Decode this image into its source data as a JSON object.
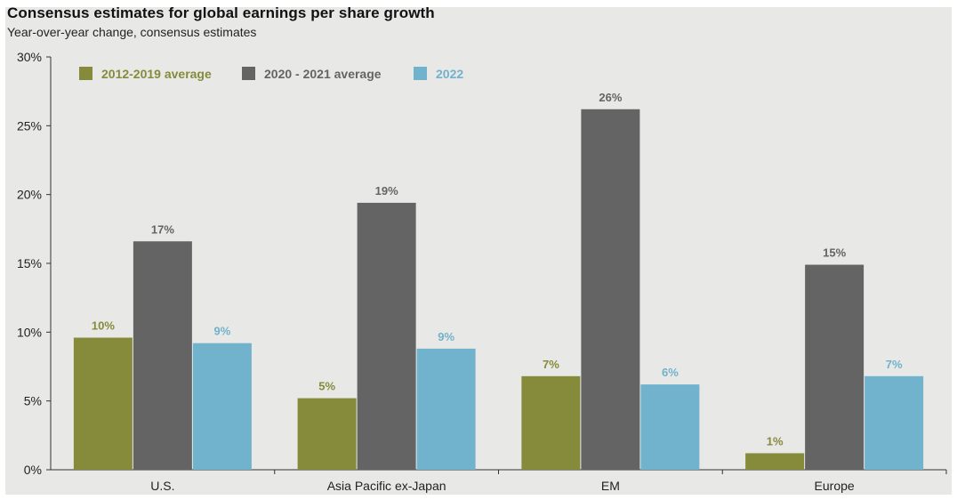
{
  "chart_data": {
    "type": "bar",
    "title": "Consensus estimates for global earnings per share growth",
    "subtitle": "Year-over-year change, consensus estimates",
    "categories": [
      "U.S.",
      "Asia Pacific ex-Japan",
      "EM",
      "Europe"
    ],
    "series": [
      {
        "name": "2012-2019 average",
        "color": "#868a3b",
        "values": [
          9.6,
          5.2,
          6.8,
          1.2
        ],
        "labels": [
          "10%",
          "5%",
          "7%",
          "1%"
        ]
      },
      {
        "name": "2020 - 2021 average",
        "color": "#646464",
        "values": [
          16.6,
          19.4,
          26.2,
          14.9
        ],
        "labels": [
          "17%",
          "19%",
          "26%",
          "15%"
        ]
      },
      {
        "name": "2022",
        "color": "#71b2cc",
        "values": [
          9.2,
          8.8,
          6.2,
          6.8
        ],
        "labels": [
          "9%",
          "9%",
          "6%",
          "7%"
        ]
      }
    ],
    "ylim": [
      0,
      30
    ],
    "yticks": [
      0,
      5,
      10,
      15,
      20,
      25,
      30
    ],
    "ytick_labels": [
      "0%",
      "5%",
      "10%",
      "15%",
      "20%",
      "25%",
      "30%"
    ],
    "legend": "top-left",
    "grid": false
  }
}
